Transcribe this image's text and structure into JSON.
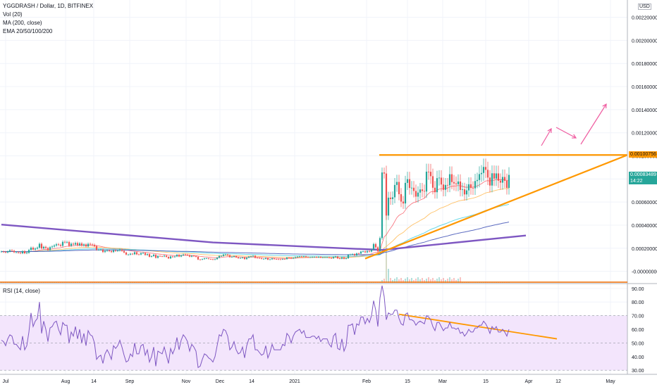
{
  "header": {
    "symbol_line": "YGGDRASH / Dollar, 1D, BITFINEX",
    "indicators": [
      "Vol (20)",
      "MA (200, close)",
      "EMA 20/50/100/200"
    ]
  },
  "rsi_header": "RSI (14, close)",
  "currency_label": "USD",
  "badges": {
    "resistance": {
      "label": "0.00100756",
      "value": 0.00100756,
      "bg": "#ff9800",
      "fg": "#131722"
    },
    "current": {
      "label": "0.00083489",
      "value": 0.00083489,
      "countdown": "14:22",
      "bg": "#26a69a",
      "fg": "#ffffff"
    }
  },
  "colors": {
    "up": "#26a69a",
    "down": "#ef5350",
    "trend": "#ff9800",
    "ma200": "#7e57c2",
    "rsi_line": "#7e57c2",
    "rsi_band": "#f3e5fc",
    "arrow": "#ef5ca0",
    "grid": "#f0f3fa"
  },
  "chart_data": [
    {
      "type": "candlestick",
      "title": "YGGDRASH / Dollar, 1D, BITFINEX",
      "y_ticks": [
        "0.00220000",
        "0.00200000",
        "0.00180000",
        "0.00160000",
        "0.00140000",
        "0.00120000",
        "0.00100000",
        "0.00080000",
        "0.00060000",
        "0.00040000",
        "0.00020000",
        "-0.00000000"
      ],
      "ylim": [
        -0.0001,
        0.00235
      ],
      "x_ticks": [
        "Jul",
        "Aug",
        "14",
        "Sep",
        "Nov",
        "Dec",
        "14",
        "2021",
        "Feb",
        "15",
        "Mar",
        "15",
        "Apr",
        "12",
        "May"
      ],
      "closes": [
        0.000171,
        0.000168,
        0.000163,
        0.000172,
        0.000183,
        0.000178,
        0.000165,
        0.000165,
        0.00016,
        0.000156,
        0.000175,
        0.000156,
        0.00016,
        0.000185,
        0.000205,
        0.000188,
        0.000197,
        0.000205,
        0.000238,
        0.000198,
        0.000212,
        0.000202,
        0.000185,
        0.000209,
        0.000215,
        0.000224,
        0.000234,
        0.000229,
        0.000221,
        0.000255,
        0.000253,
        0.000254,
        0.000221,
        0.000239,
        0.000232,
        0.000245,
        0.000227,
        0.000242,
        0.000223,
        0.000233,
        0.000216,
        0.000238,
        0.000232,
        0.000229,
        0.000218,
        0.000187,
        0.000188,
        0.000189,
        0.000167,
        0.000177,
        0.000182,
        0.000175,
        0.000167,
        0.000182,
        0.000176,
        0.000179,
        0.000188,
        0.000177,
        0.000163,
        0.000145,
        0.000145,
        0.000152,
        0.000148,
        0.000165,
        0.000147,
        0.000146,
        0.000157,
        0.000159,
        0.000142,
        0.000149,
        0.000126,
        0.000132,
        0.000144,
        0.000117,
        0.000133,
        0.000131,
        0.000129,
        0.000136,
        0.000125,
        0.000112,
        0.000129,
        0.000123,
        0.000129,
        0.000143,
        0.000128,
        0.000139,
        0.000146,
        0.000144,
        0.00014,
        0.000127,
        0.000135,
        0.000131,
        0.000126,
        0.000102,
        0.000101,
        0.000106,
        0.000112,
        0.000112,
        0.000107,
        0.000105,
        0.000101,
        0.000105,
        0.000118,
        0.000133,
        0.000133,
        0.000145,
        0.000146,
        0.00014,
        0.000123,
        0.000126,
        0.000132,
        0.000121,
        0.000114,
        0.000115,
        0.00012,
        0.000106,
        0.000118,
        0.000127,
        0.000129,
        0.000135,
        0.000117,
        0.000116,
        0.000113,
        0.000108,
        0.000108,
        0.000115,
        0.000101,
        0.000104,
        0.000112,
        0.000106,
        0.000105,
        0.000104,
        0.000103,
        0.000107,
        0.000106,
        0.000119,
        0.000118,
        0.000111,
        0.000117,
        0.000123,
        0.000127,
        0.000129,
        0.000127,
        0.00013,
        0.000123,
        0.000122,
        0.000122,
        0.000124,
        0.000124,
        0.000122,
        0.000125,
        0.000119,
        0.000121,
        0.000121,
        0.000121,
        0.000116,
        0.000113,
        0.000124,
        0.000128,
        0.000112,
        0.000109,
        0.000121,
        0.000108,
        0.000113,
        0.000143,
        0.000146,
        0.000149,
        0.000138,
        0.000155,
        0.000154,
        0.000171,
        0.000173,
        0.000165,
        0.000175,
        0.000171,
        0.000188,
        0.000236,
        0.000208,
        0.000174,
        0.000288,
        0.000856,
        0.000847,
        0.000483,
        0.000638,
        0.000626,
        0.000641,
        0.000748,
        0.000774,
        0.000668,
        0.000604,
        0.000588,
        0.000766,
        0.000798,
        0.000722,
        0.000724,
        0.000696,
        0.000647,
        0.000682,
        0.000709,
        0.000696,
        0.000691,
        0.000863,
        0.000862,
        0.000824,
        0.000724,
        0.000685,
        0.000807,
        0.000811,
        0.000752,
        0.000706,
        0.000748,
        0.000745,
        0.000841,
        0.000773,
        0.000761,
        0.000754,
        0.000778,
        0.000705,
        0.00071,
        0.000666,
        0.000701,
        0.000754,
        0.000722,
        0.000719,
        0.000782,
        0.000791,
        0.000842,
        0.000852,
        0.000904,
        0.000879,
        0.000812,
        0.000743,
        0.000849,
        0.000803,
        0.000848,
        0.000785,
        0.000768,
        0.000817,
        0.000784,
        0.000723,
        0.000835
      ],
      "current_price": 0.00083489,
      "horizontal_resistance": 0.00100756,
      "annotations": [
        "ascending triangle",
        "breakout arrows"
      ]
    },
    {
      "type": "line",
      "title": "RSI (14, close)",
      "y_ticks": [
        "90.00",
        "80.00",
        "70.00",
        "60.00",
        "50.00",
        "40.00",
        "30.00"
      ],
      "ylim": [
        27,
        93
      ],
      "band": [
        30,
        70
      ],
      "values": [
        52,
        51,
        48,
        53,
        56,
        55,
        49,
        49,
        47,
        45,
        55,
        45,
        48,
        58,
        72,
        62,
        66,
        68,
        80,
        57,
        66,
        60,
        51,
        61,
        62,
        65,
        66,
        60,
        56,
        65,
        63,
        63,
        50,
        58,
        55,
        62,
        53,
        60,
        50,
        57,
        48,
        59,
        56,
        55,
        50,
        38,
        40,
        41,
        35,
        42,
        45,
        42,
        38,
        48,
        46,
        48,
        52,
        47,
        41,
        36,
        37,
        42,
        40,
        50,
        42,
        42,
        48,
        49,
        41,
        45,
        36,
        40,
        47,
        33,
        44,
        43,
        42,
        47,
        41,
        35,
        46,
        42,
        46,
        54,
        45,
        52,
        56,
        54,
        51,
        44,
        49,
        47,
        44,
        32,
        33,
        38,
        42,
        41,
        39,
        38,
        36,
        40,
        48,
        56,
        55,
        60,
        59,
        55,
        45,
        47,
        51,
        45,
        42,
        43,
        47,
        39,
        48,
        53,
        53,
        56,
        45,
        45,
        43,
        41,
        42,
        48,
        39,
        43,
        49,
        45,
        45,
        45,
        45,
        49,
        48,
        57,
        55,
        50,
        55,
        58,
        59,
        60,
        57,
        59,
        54,
        54,
        54,
        55,
        55,
        53,
        55,
        51,
        53,
        53,
        53,
        49,
        47,
        55,
        57,
        46,
        45,
        53,
        44,
        48,
        63,
        63,
        64,
        56,
        64,
        63,
        69,
        69,
        64,
        68,
        65,
        70,
        81,
        74,
        62,
        83,
        92,
        84,
        67,
        72,
        71,
        71,
        74,
        74,
        68,
        64,
        63,
        71,
        72,
        67,
        67,
        66,
        63,
        65,
        66,
        65,
        64,
        70,
        69,
        67,
        62,
        59,
        65,
        65,
        62,
        59,
        61,
        61,
        65,
        61,
        61,
        60,
        61,
        57,
        58,
        55,
        57,
        60,
        58,
        58,
        61,
        61,
        63,
        63,
        66,
        64,
        61,
        57,
        62,
        60,
        62,
        58,
        58,
        60,
        58,
        55,
        60
      ],
      "trendline": [
        71,
        53
      ]
    }
  ]
}
